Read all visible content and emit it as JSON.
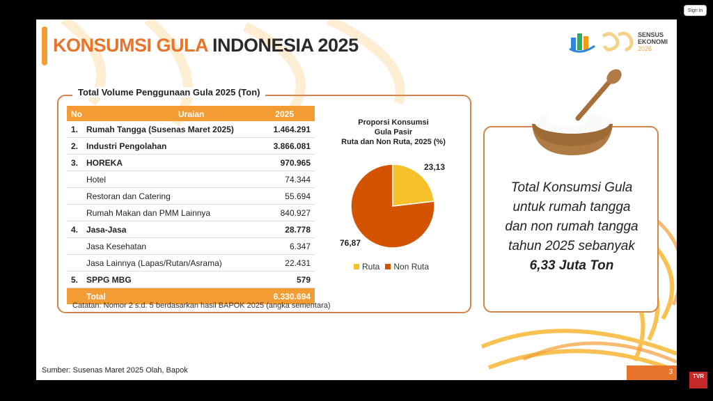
{
  "topbar": {
    "signin_label": "Sign in"
  },
  "slide": {
    "title_highlight": "KONSUMSI GULA",
    "title_rest": " INDONESIA 2025",
    "logo": {
      "line1": "SENSUS",
      "line2": "EKONOMI",
      "line3": "2026"
    },
    "table": {
      "title": "Total Volume Penggunaan Gula 2025 (Ton)",
      "headers": {
        "no": "No",
        "uraian": "Uraian",
        "year": "2025"
      },
      "rows": [
        {
          "no": "1.",
          "label": "Rumah Tangga (Susenas Maret 2025)",
          "value": "1.464.291",
          "bold": true
        },
        {
          "no": "2.",
          "label": "Industri Pengolahan",
          "value": "3.866.081",
          "bold": true
        },
        {
          "no": "3.",
          "label": "HOREKA",
          "value": "970.965",
          "bold": true
        },
        {
          "no": "",
          "label": "Hotel",
          "value": "74.344",
          "bold": false
        },
        {
          "no": "",
          "label": "Restoran dan Catering",
          "value": "55.694",
          "bold": false
        },
        {
          "no": "",
          "label": "Rumah Makan dan PMM Lainnya",
          "value": "840.927",
          "bold": false
        },
        {
          "no": "4.",
          "label": "Jasa-Jasa",
          "value": "28.778",
          "bold": true
        },
        {
          "no": "",
          "label": "Jasa Kesehatan",
          "value": "6.347",
          "bold": false
        },
        {
          "no": "",
          "label": "Jasa Lainnya (Lapas/Rutan/Asrama)",
          "value": "22.431",
          "bold": false
        },
        {
          "no": "5.",
          "label": "SPPG MBG",
          "value": "579",
          "bold": true
        }
      ],
      "total": {
        "label": "Total",
        "value": "6.330.694"
      },
      "note": "Catatan: Nomor 2 s.d. 5 berdasarkan hasil BAPOK 2025 (angka sementara)"
    },
    "pie": {
      "title_line1": "Proporsi Konsumsi",
      "title_line2": "Gula Pasir",
      "title_line3": "Ruta dan Non Ruta, 2025 (%)",
      "label_ruta": "23,13",
      "label_nonruta": "76,87",
      "legend_ruta": "Ruta",
      "legend_nonruta": "Non Ruta",
      "color_ruta": "#f7c12c",
      "color_nonruta": "#d35400"
    },
    "chart_data": {
      "type": "pie",
      "title": "Proporsi Konsumsi Gula Pasir Ruta dan Non Ruta, 2025 (%)",
      "categories": [
        "Ruta",
        "Non Ruta"
      ],
      "values": [
        23.13,
        76.87
      ],
      "legend": "bottom"
    },
    "callout": {
      "line1": "Total Konsumsi Gula",
      "line2": "untuk rumah tangga",
      "line3": "dan non rumah tangga",
      "line4": "tahun 2025 sebanyak",
      "emphasis": "6,33 Juta Ton"
    },
    "source": "Sumber: Susenas Maret 2025 Olah, Bapok",
    "page_number": "3"
  },
  "corner_logo": "TVR"
}
